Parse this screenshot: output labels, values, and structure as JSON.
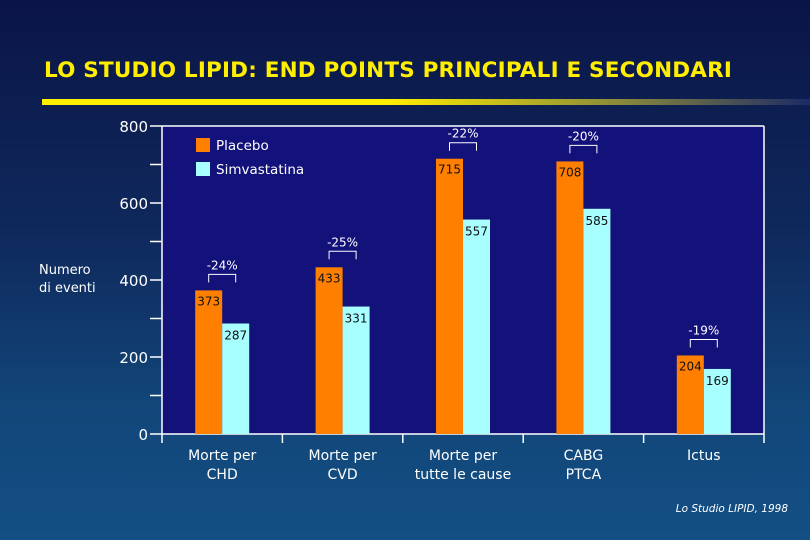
{
  "title": "LO STUDIO LIPID: END POINTS PRINCIPALI E SECONDARI",
  "source": "Lo Studio LIPID, 1998",
  "colors": {
    "placebo": "#ff7f00",
    "simvastatina": "#a8ffff",
    "plot_bg": "#13117a",
    "title": "#ffee00"
  },
  "chart_data": {
    "type": "bar",
    "ylabel": "Numero di eventi",
    "ylabel_lines": [
      "Numero",
      "di eventi"
    ],
    "ylim": [
      0,
      800
    ],
    "yticks": [
      0,
      200,
      400,
      600,
      800
    ],
    "categories": [
      [
        "Morte per",
        "CHD"
      ],
      [
        "Morte per",
        "CVD"
      ],
      [
        "Morte per",
        "tutte le cause"
      ],
      [
        "CABG",
        "PTCA"
      ],
      [
        "Ictus"
      ]
    ],
    "series": [
      {
        "name": "Placebo",
        "values": [
          373,
          433,
          715,
          708,
          204
        ]
      },
      {
        "name": "Simvastatina",
        "values": [
          287,
          331,
          557,
          585,
          169
        ]
      }
    ],
    "reductions": [
      "-24%",
      "-25%",
      "-22%",
      "-20%",
      "-19%"
    ],
    "legend_position": "top-left"
  }
}
